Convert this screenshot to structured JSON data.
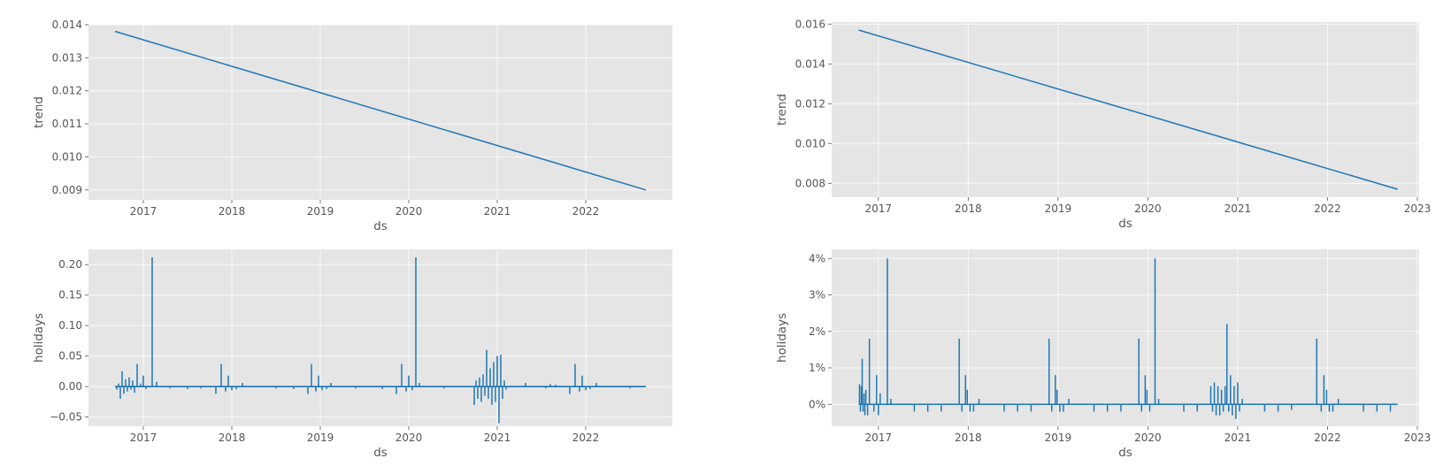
{
  "colors": {
    "background": "#E5E5E5",
    "grid": "#FFFFFF",
    "line": "#1F77B4",
    "text": "#555555"
  },
  "chart_data": [
    {
      "id": "left-trend",
      "type": "line",
      "xlabel": "ds",
      "ylabel": "trend",
      "xlim": [
        2016.38,
        2022.98
      ],
      "ylim": [
        0.0087,
        0.014
      ],
      "x_ticks": [
        2017,
        2018,
        2019,
        2020,
        2021,
        2022
      ],
      "x_tick_labels": [
        "2017",
        "2018",
        "2019",
        "2020",
        "2021",
        "2022"
      ],
      "y_ticks": [
        0.009,
        0.01,
        0.011,
        0.012,
        0.013,
        0.014
      ],
      "y_tick_labels": [
        "0.009",
        "0.010",
        "0.011",
        "0.012",
        "0.013",
        "0.014"
      ],
      "grid": true,
      "series": [
        {
          "x": [
            2016.68,
            2022.68
          ],
          "values": [
            0.0138,
            0.009
          ]
        }
      ]
    },
    {
      "id": "right-trend",
      "type": "line",
      "xlabel": "ds",
      "ylabel": "trend",
      "xlim": [
        2016.48,
        2023.02
      ],
      "ylim": [
        0.0073,
        0.0161
      ],
      "x_ticks": [
        2017,
        2018,
        2019,
        2020,
        2021,
        2022,
        2023
      ],
      "x_tick_labels": [
        "2017",
        "2018",
        "2019",
        "2020",
        "2021",
        "2022",
        "2023"
      ],
      "y_ticks": [
        0.008,
        0.01,
        0.012,
        0.014,
        0.016
      ],
      "y_tick_labels": [
        "0.008",
        "0.010",
        "0.012",
        "0.014",
        "0.016"
      ],
      "grid": true,
      "series": [
        {
          "x": [
            2016.78,
            2022.78
          ],
          "values": [
            0.0157,
            0.0077
          ]
        }
      ]
    },
    {
      "id": "left-holidays",
      "type": "line",
      "xlabel": "ds",
      "ylabel": "holidays",
      "xlim": [
        2016.38,
        2022.98
      ],
      "ylim": [
        -0.065,
        0.225
      ],
      "x_ticks": [
        2017,
        2018,
        2019,
        2020,
        2021,
        2022
      ],
      "x_tick_labels": [
        "2017",
        "2018",
        "2019",
        "2020",
        "2021",
        "2022"
      ],
      "y_ticks": [
        -0.05,
        0.0,
        0.05,
        0.1,
        0.15,
        0.2
      ],
      "y_tick_labels": [
        "−0.05",
        "0.00",
        "0.05",
        "0.10",
        "0.15",
        "0.20"
      ],
      "grid": true,
      "baseline": 0,
      "x_range": [
        2016.68,
        2022.68
      ],
      "spikes": [
        [
          2016.7,
          -0.005
        ],
        [
          2016.72,
          0.005
        ],
        [
          2016.74,
          -0.02
        ],
        [
          2016.76,
          0.025
        ],
        [
          2016.78,
          -0.012
        ],
        [
          2016.8,
          0.012
        ],
        [
          2016.82,
          -0.008
        ],
        [
          2016.84,
          0.015
        ],
        [
          2016.86,
          -0.005
        ],
        [
          2016.88,
          0.01
        ],
        [
          2016.9,
          -0.01
        ],
        [
          2016.93,
          0.037
        ],
        [
          2016.97,
          0.005
        ],
        [
          2017.0,
          0.018
        ],
        [
          2017.03,
          -0.004
        ],
        [
          2017.1,
          0.212
        ],
        [
          2017.15,
          0.008
        ],
        [
          2017.3,
          -0.003
        ],
        [
          2017.5,
          -0.004
        ],
        [
          2017.65,
          -0.003
        ],
        [
          2017.82,
          -0.012
        ],
        [
          2017.88,
          0.037
        ],
        [
          2017.93,
          -0.008
        ],
        [
          2017.96,
          0.018
        ],
        [
          2018.0,
          -0.006
        ],
        [
          2018.05,
          -0.004
        ],
        [
          2018.12,
          0.006
        ],
        [
          2018.5,
          -0.003
        ],
        [
          2018.7,
          -0.004
        ],
        [
          2018.86,
          -0.012
        ],
        [
          2018.9,
          0.037
        ],
        [
          2018.95,
          -0.008
        ],
        [
          2018.98,
          0.018
        ],
        [
          2019.02,
          -0.006
        ],
        [
          2019.07,
          -0.004
        ],
        [
          2019.12,
          0.006
        ],
        [
          2019.4,
          -0.003
        ],
        [
          2019.7,
          -0.004
        ],
        [
          2019.86,
          -0.012
        ],
        [
          2019.92,
          0.037
        ],
        [
          2019.97,
          -0.008
        ],
        [
          2020.0,
          0.018
        ],
        [
          2020.04,
          -0.006
        ],
        [
          2020.08,
          0.212
        ],
        [
          2020.12,
          0.006
        ],
        [
          2020.4,
          -0.003
        ],
        [
          2020.74,
          -0.03
        ],
        [
          2020.76,
          0.01
        ],
        [
          2020.78,
          -0.02
        ],
        [
          2020.8,
          0.015
        ],
        [
          2020.82,
          -0.025
        ],
        [
          2020.84,
          0.02
        ],
        [
          2020.86,
          -0.015
        ],
        [
          2020.88,
          0.06
        ],
        [
          2020.9,
          -0.02
        ],
        [
          2020.92,
          0.03
        ],
        [
          2020.94,
          -0.03
        ],
        [
          2020.96,
          0.04
        ],
        [
          2020.98,
          -0.025
        ],
        [
          2021.0,
          0.05
        ],
        [
          2021.02,
          -0.06
        ],
        [
          2021.04,
          0.052
        ],
        [
          2021.06,
          -0.02
        ],
        [
          2021.08,
          0.01
        ],
        [
          2021.1,
          -0.005
        ],
        [
          2021.32,
          0.006
        ],
        [
          2021.55,
          -0.003
        ],
        [
          2021.6,
          0.004
        ],
        [
          2021.66,
          0.003
        ],
        [
          2021.82,
          -0.012
        ],
        [
          2021.88,
          0.037
        ],
        [
          2021.93,
          -0.008
        ],
        [
          2021.96,
          0.018
        ],
        [
          2022.0,
          -0.006
        ],
        [
          2022.05,
          -0.004
        ],
        [
          2022.12,
          0.006
        ],
        [
          2022.5,
          -0.003
        ]
      ]
    },
    {
      "id": "right-holidays",
      "type": "line",
      "xlabel": "ds",
      "ylabel": "holidays",
      "xlim": [
        2016.48,
        2023.02
      ],
      "ylim": [
        -0.006,
        0.0425
      ],
      "x_ticks": [
        2017,
        2018,
        2019,
        2020,
        2021,
        2022,
        2023
      ],
      "x_tick_labels": [
        "2017",
        "2018",
        "2019",
        "2020",
        "2021",
        "2022",
        "2023"
      ],
      "y_ticks": [
        0,
        0.01,
        0.02,
        0.03,
        0.04
      ],
      "y_tick_labels": [
        "0%",
        "1%",
        "2%",
        "3%",
        "4%"
      ],
      "grid": true,
      "baseline": 0,
      "x_range": [
        2016.78,
        2022.78
      ],
      "spikes": [
        [
          2016.79,
          0.0055
        ],
        [
          2016.8,
          -0.002
        ],
        [
          2016.81,
          0.005
        ],
        [
          2016.82,
          0.0125
        ],
        [
          2016.83,
          -0.002
        ],
        [
          2016.84,
          0.003
        ],
        [
          2016.85,
          -0.003
        ],
        [
          2016.86,
          0.004
        ],
        [
          2016.88,
          -0.003
        ],
        [
          2016.9,
          0.018
        ],
        [
          2016.95,
          -0.002
        ],
        [
          2016.98,
          0.008
        ],
        [
          2017.0,
          -0.003
        ],
        [
          2017.02,
          0.003
        ],
        [
          2017.1,
          0.04
        ],
        [
          2017.14,
          0.0015
        ],
        [
          2017.4,
          -0.002
        ],
        [
          2017.55,
          -0.002
        ],
        [
          2017.7,
          -0.002
        ],
        [
          2017.9,
          0.018
        ],
        [
          2017.93,
          -0.002
        ],
        [
          2017.97,
          0.008
        ],
        [
          2017.99,
          0.004
        ],
        [
          2018.02,
          -0.002
        ],
        [
          2018.06,
          -0.002
        ],
        [
          2018.12,
          0.0015
        ],
        [
          2018.4,
          -0.002
        ],
        [
          2018.55,
          -0.002
        ],
        [
          2018.7,
          -0.002
        ],
        [
          2018.9,
          0.018
        ],
        [
          2018.93,
          -0.002
        ],
        [
          2018.97,
          0.008
        ],
        [
          2018.99,
          0.004
        ],
        [
          2019.02,
          -0.002
        ],
        [
          2019.06,
          -0.002
        ],
        [
          2019.12,
          0.0015
        ],
        [
          2019.4,
          -0.002
        ],
        [
          2019.55,
          -0.002
        ],
        [
          2019.7,
          -0.002
        ],
        [
          2019.9,
          0.018
        ],
        [
          2019.93,
          -0.002
        ],
        [
          2019.97,
          0.008
        ],
        [
          2019.99,
          0.004
        ],
        [
          2020.02,
          -0.002
        ],
        [
          2020.08,
          0.04
        ],
        [
          2020.12,
          0.0015
        ],
        [
          2020.4,
          -0.002
        ],
        [
          2020.55,
          -0.002
        ],
        [
          2020.7,
          0.005
        ],
        [
          2020.72,
          -0.002
        ],
        [
          2020.74,
          0.006
        ],
        [
          2020.76,
          -0.003
        ],
        [
          2020.78,
          0.005
        ],
        [
          2020.8,
          -0.003
        ],
        [
          2020.82,
          0.004
        ],
        [
          2020.84,
          -0.002
        ],
        [
          2020.86,
          0.005
        ],
        [
          2020.88,
          0.022
        ],
        [
          2020.9,
          -0.002
        ],
        [
          2020.92,
          0.008
        ],
        [
          2020.94,
          -0.003
        ],
        [
          2020.96,
          0.005
        ],
        [
          2020.98,
          -0.004
        ],
        [
          2021.0,
          0.006
        ],
        [
          2021.02,
          -0.002
        ],
        [
          2021.05,
          0.0015
        ],
        [
          2021.3,
          -0.002
        ],
        [
          2021.45,
          -0.002
        ],
        [
          2021.6,
          -0.0015
        ],
        [
          2021.88,
          0.018
        ],
        [
          2021.93,
          -0.002
        ],
        [
          2021.96,
          0.008
        ],
        [
          2021.99,
          0.004
        ],
        [
          2022.02,
          -0.002
        ],
        [
          2022.06,
          -0.002
        ],
        [
          2022.12,
          0.0015
        ],
        [
          2022.4,
          -0.002
        ],
        [
          2022.55,
          -0.002
        ],
        [
          2022.7,
          -0.002
        ]
      ]
    }
  ]
}
